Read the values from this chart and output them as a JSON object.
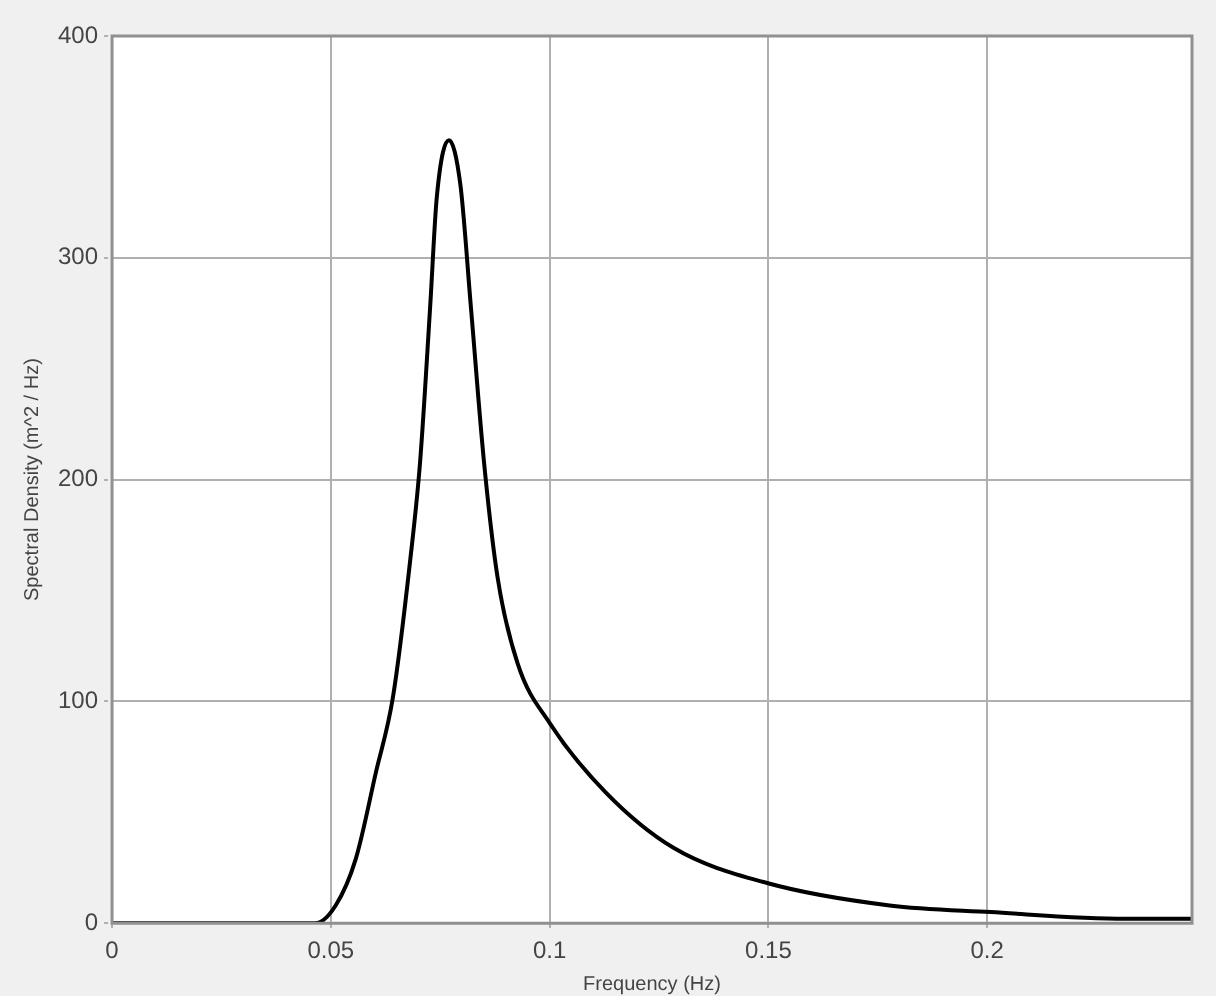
{
  "chart_data": {
    "type": "line",
    "xlabel": "Frequency (Hz)",
    "ylabel": "Spectral Density (m^2 / Hz)",
    "x": [
      0,
      0.0464,
      0.0511,
      0.0557,
      0.0603,
      0.0642,
      0.0681,
      0.0704,
      0.0727,
      0.0742,
      0.077,
      0.0796,
      0.082,
      0.085,
      0.0881,
      0.0927,
      0.1001,
      0.1128,
      0.1283,
      0.1499,
      0.1777,
      0.2008,
      0.2317,
      0.2468
    ],
    "series": [
      {
        "color": "#000000",
        "values": [
          0,
          0,
          8,
          29,
          68,
          102,
          163,
          208,
          278,
          327,
          353,
          333,
          278,
          208,
          156,
          117,
          90,
          59,
          34,
          18,
          8,
          5,
          2,
          2
        ]
      }
    ],
    "xlim": [
      0,
      0.2468
    ],
    "xticks": [
      0,
      0.05,
      0.1,
      0.15,
      0.2
    ],
    "ylim": [
      0,
      400
    ],
    "yticks": [
      0,
      100,
      200,
      300,
      400
    ],
    "grid": true,
    "legend": false,
    "marker": "none",
    "line_style": "solid"
  }
}
